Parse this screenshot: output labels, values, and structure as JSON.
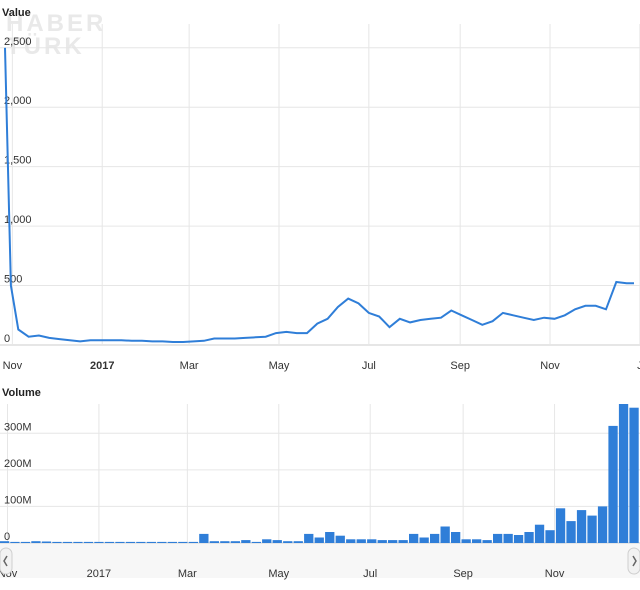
{
  "watermark": {
    "line1": "HABER",
    "line2": "TÜRK"
  },
  "chart_data": [
    {
      "type": "line",
      "ylabel": "Value",
      "ylim": [
        0,
        2700
      ],
      "yticks": [
        0,
        500,
        1000,
        1500,
        2000,
        2500
      ],
      "ytick_labels": [
        "0",
        "500",
        "1,000",
        "1,500",
        "2,000",
        "2,500"
      ],
      "xlim": [
        "2016-10-27",
        "2017-12-28"
      ],
      "xtick_dates": [
        "2016-11-01",
        "2017-01-01",
        "2017-03-01",
        "2017-05-01",
        "2017-07-01",
        "2017-09-01",
        "2017-11-01",
        "2018-01-01"
      ],
      "xtick_labels": [
        "Nov",
        "2017",
        "Mar",
        "May",
        "Jul",
        "Sep",
        "Nov",
        "J"
      ],
      "grid": true,
      "color": "#2f7ed8",
      "x": [
        "2016-10-27",
        "2016-10-31",
        "2016-11-05",
        "2016-11-12",
        "2016-11-19",
        "2016-11-26",
        "2016-12-03",
        "2016-12-10",
        "2016-12-17",
        "2016-12-24",
        "2016-12-31",
        "2017-01-07",
        "2017-01-14",
        "2017-01-21",
        "2017-01-28",
        "2017-02-04",
        "2017-02-11",
        "2017-02-18",
        "2017-02-25",
        "2017-03-04",
        "2017-03-11",
        "2017-03-18",
        "2017-03-25",
        "2017-04-01",
        "2017-04-08",
        "2017-04-15",
        "2017-04-22",
        "2017-04-29",
        "2017-05-06",
        "2017-05-13",
        "2017-05-20",
        "2017-05-27",
        "2017-06-03",
        "2017-06-10",
        "2017-06-17",
        "2017-06-24",
        "2017-07-01",
        "2017-07-08",
        "2017-07-15",
        "2017-07-22",
        "2017-07-29",
        "2017-08-05",
        "2017-08-12",
        "2017-08-19",
        "2017-08-26",
        "2017-09-02",
        "2017-09-09",
        "2017-09-16",
        "2017-09-23",
        "2017-09-30",
        "2017-10-07",
        "2017-10-14",
        "2017-10-21",
        "2017-10-28",
        "2017-11-04",
        "2017-11-11",
        "2017-11-18",
        "2017-11-25",
        "2017-12-02",
        "2017-12-09",
        "2017-12-16",
        "2017-12-23",
        "2017-12-28"
      ],
      "y": [
        2500,
        500,
        130,
        70,
        80,
        60,
        50,
        40,
        30,
        40,
        40,
        40,
        40,
        35,
        35,
        30,
        30,
        25,
        25,
        30,
        35,
        55,
        55,
        55,
        60,
        65,
        70,
        100,
        110,
        100,
        100,
        180,
        220,
        320,
        390,
        350,
        270,
        240,
        150,
        220,
        190,
        210,
        220,
        230,
        290,
        250,
        210,
        170,
        200,
        270,
        250,
        230,
        210,
        230,
        220,
        250,
        300,
        330,
        330,
        300,
        530,
        520,
        520
      ]
    },
    {
      "type": "bar",
      "ylabel": "Volume",
      "ylim": [
        0,
        380
      ],
      "yticks": [
        0,
        100,
        200,
        300
      ],
      "ytick_labels": [
        "0",
        "100M",
        "200M",
        "300M"
      ],
      "unit": "M",
      "xlim": [
        "2016-10-27",
        "2017-12-28"
      ],
      "xtick_dates": [
        "2016-11-01",
        "2017-01-01",
        "2017-03-01",
        "2017-05-01",
        "2017-07-01",
        "2017-09-01",
        "2017-11-01"
      ],
      "xtick_labels": [
        "Nov",
        "2017",
        "Mar",
        "May",
        "Jul",
        "Sep",
        "Nov"
      ],
      "grid": true,
      "color": "#2f7ed8",
      "x": [
        "2016-10-30",
        "2016-11-06",
        "2016-11-13",
        "2016-11-20",
        "2016-11-27",
        "2016-12-04",
        "2016-12-11",
        "2016-12-18",
        "2016-12-25",
        "2017-01-01",
        "2017-01-08",
        "2017-01-15",
        "2017-01-22",
        "2017-01-29",
        "2017-02-05",
        "2017-02-12",
        "2017-02-19",
        "2017-02-26",
        "2017-03-05",
        "2017-03-12",
        "2017-03-19",
        "2017-03-26",
        "2017-04-02",
        "2017-04-09",
        "2017-04-16",
        "2017-04-23",
        "2017-04-30",
        "2017-05-07",
        "2017-05-14",
        "2017-05-21",
        "2017-05-28",
        "2017-06-04",
        "2017-06-11",
        "2017-06-18",
        "2017-06-25",
        "2017-07-02",
        "2017-07-09",
        "2017-07-16",
        "2017-07-23",
        "2017-07-30",
        "2017-08-06",
        "2017-08-13",
        "2017-08-20",
        "2017-08-27",
        "2017-09-03",
        "2017-09-10",
        "2017-09-17",
        "2017-09-24",
        "2017-10-01",
        "2017-10-08",
        "2017-10-15",
        "2017-10-22",
        "2017-10-29",
        "2017-11-05",
        "2017-11-12",
        "2017-11-19",
        "2017-11-26",
        "2017-12-03",
        "2017-12-10",
        "2017-12-17",
        "2017-12-24"
      ],
      "values": [
        5,
        3,
        3,
        5,
        4,
        3,
        3,
        3,
        3,
        3,
        3,
        3,
        3,
        3,
        3,
        3,
        3,
        3,
        3,
        25,
        5,
        5,
        5,
        8,
        3,
        10,
        8,
        5,
        5,
        25,
        15,
        30,
        20,
        10,
        10,
        10,
        8,
        8,
        8,
        25,
        15,
        25,
        45,
        30,
        10,
        10,
        8,
        25,
        25,
        22,
        30,
        50,
        35,
        95,
        60,
        90,
        75,
        100,
        320,
        380,
        370
      ]
    }
  ]
}
